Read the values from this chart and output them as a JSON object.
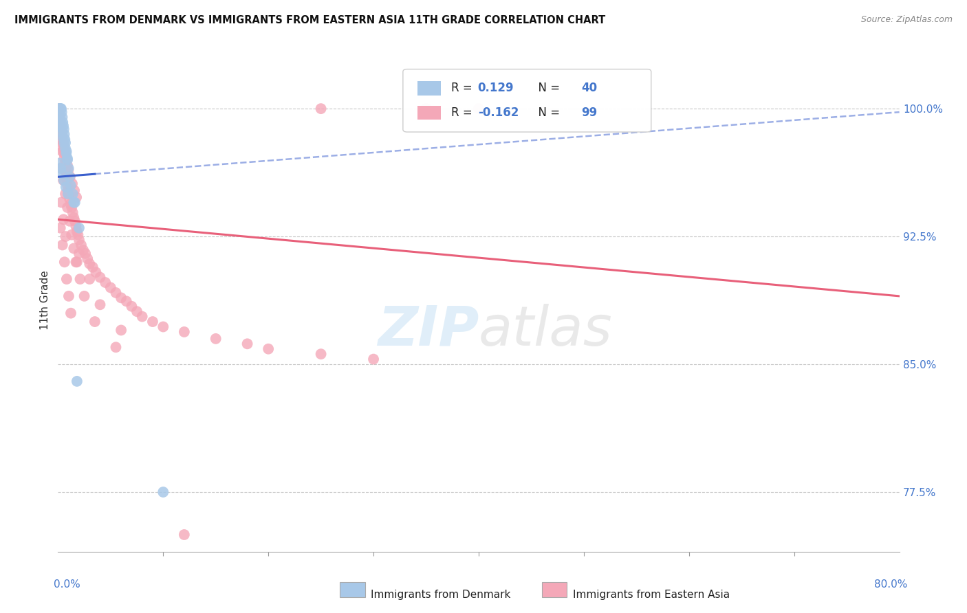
{
  "title": "IMMIGRANTS FROM DENMARK VS IMMIGRANTS FROM EASTERN ASIA 11TH GRADE CORRELATION CHART",
  "source": "Source: ZipAtlas.com",
  "ylabel": "11th Grade",
  "right_yticks": [
    77.5,
    85.0,
    92.5,
    100.0
  ],
  "right_yticklabels": [
    "77.5%",
    "85.0%",
    "92.5%",
    "100.0%"
  ],
  "xlim": [
    0.0,
    80.0
  ],
  "ylim": [
    74.0,
    103.5
  ],
  "legend_R_denmark": "0.129",
  "legend_N_denmark": "40",
  "legend_R_eastern": "-0.162",
  "legend_N_eastern": "99",
  "blue_color": "#a8c8e8",
  "pink_color": "#f4a8b8",
  "blue_line_color": "#3a5fcd",
  "pink_line_color": "#e8607a",
  "denmark_x": [
    0.1,
    0.15,
    0.2,
    0.25,
    0.3,
    0.35,
    0.4,
    0.45,
    0.5,
    0.55,
    0.6,
    0.65,
    0.7,
    0.8,
    0.9,
    1.0,
    1.1,
    1.2,
    1.4,
    1.6,
    0.12,
    0.18,
    0.22,
    0.28,
    0.38,
    0.48,
    0.58,
    0.68,
    0.78,
    0.88,
    0.15,
    0.25,
    0.35,
    0.55,
    0.75,
    0.95,
    1.5,
    1.8,
    2.0,
    10.0
  ],
  "denmark_y": [
    100.0,
    100.0,
    100.0,
    100.0,
    100.0,
    99.8,
    99.5,
    99.2,
    99.0,
    98.8,
    98.5,
    98.2,
    98.0,
    97.5,
    97.0,
    96.5,
    96.0,
    95.5,
    95.0,
    94.5,
    99.5,
    99.3,
    99.1,
    98.9,
    98.6,
    98.3,
    98.0,
    97.7,
    97.4,
    97.1,
    96.8,
    96.5,
    96.2,
    95.8,
    95.4,
    95.0,
    94.5,
    84.0,
    93.0,
    77.5
  ],
  "eastern_x": [
    0.05,
    0.1,
    0.15,
    0.2,
    0.25,
    0.3,
    0.35,
    0.4,
    0.45,
    0.5,
    0.55,
    0.6,
    0.65,
    0.7,
    0.75,
    0.8,
    0.85,
    0.9,
    0.95,
    1.0,
    1.1,
    1.2,
    1.3,
    1.4,
    1.5,
    1.6,
    1.7,
    1.8,
    1.9,
    2.0,
    2.2,
    2.4,
    2.6,
    2.8,
    3.0,
    3.3,
    3.6,
    4.0,
    4.5,
    5.0,
    5.5,
    6.0,
    6.5,
    7.0,
    7.5,
    8.0,
    9.0,
    10.0,
    12.0,
    15.0,
    18.0,
    20.0,
    25.0,
    30.0,
    0.08,
    0.18,
    0.28,
    0.38,
    0.48,
    0.58,
    0.68,
    0.78,
    0.88,
    0.98,
    1.15,
    1.35,
    1.55,
    1.75,
    0.3,
    0.5,
    0.7,
    0.9,
    1.1,
    1.3,
    1.5,
    1.7,
    2.1,
    2.5,
    3.5,
    5.5,
    0.22,
    0.42,
    0.62,
    0.82,
    1.02,
    1.22,
    2.0,
    3.0,
    4.0,
    6.0,
    0.32,
    0.52,
    0.72,
    1.8,
    12.0,
    0.4,
    0.6,
    25.0,
    35.0,
    40.0
  ],
  "eastern_y": [
    100.0,
    99.8,
    99.5,
    99.2,
    99.0,
    98.7,
    98.4,
    98.2,
    97.9,
    97.6,
    97.4,
    97.1,
    96.8,
    96.6,
    96.3,
    96.0,
    95.8,
    95.5,
    95.2,
    95.0,
    94.7,
    94.4,
    94.2,
    93.9,
    93.6,
    93.4,
    93.1,
    92.8,
    92.6,
    92.3,
    92.0,
    91.7,
    91.5,
    91.2,
    90.9,
    90.7,
    90.4,
    90.1,
    89.8,
    89.5,
    89.2,
    88.9,
    88.7,
    88.4,
    88.1,
    87.8,
    87.5,
    87.2,
    86.9,
    86.5,
    86.2,
    85.9,
    85.6,
    85.3,
    99.3,
    99.0,
    98.7,
    98.4,
    98.0,
    97.7,
    97.4,
    97.0,
    96.7,
    96.4,
    96.0,
    95.6,
    95.2,
    94.8,
    96.5,
    95.8,
    95.0,
    94.2,
    93.4,
    92.6,
    91.8,
    91.0,
    90.0,
    89.0,
    87.5,
    86.0,
    93.0,
    92.0,
    91.0,
    90.0,
    89.0,
    88.0,
    91.5,
    90.0,
    88.5,
    87.0,
    94.5,
    93.5,
    92.5,
    91.0,
    75.0,
    97.5,
    96.5,
    100.0,
    100.0,
    100.0
  ],
  "dk_line_x0": 0.0,
  "dk_line_x1": 80.0,
  "dk_line_y0": 96.0,
  "dk_line_y1": 99.8,
  "dk_solid_x1": 3.5,
  "ea_line_x0": 0.0,
  "ea_line_x1": 80.0,
  "ea_line_y0": 93.5,
  "ea_line_y1": 89.0
}
